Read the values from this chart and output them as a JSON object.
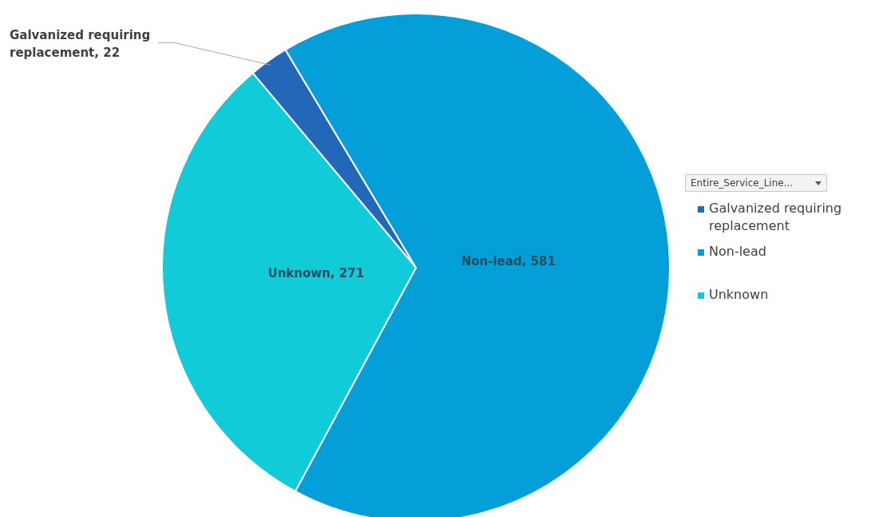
{
  "chart_data": {
    "type": "pie",
    "legend_title": "Entire_Service_Line...",
    "categories": [
      "Galvanized requiring replacement",
      "Non-lead",
      "Unknown"
    ],
    "values": [
      22,
      581,
      271
    ],
    "colors": [
      "#2368b8",
      "#049fd9",
      "#12cbd8"
    ],
    "value_labels": [
      "Galvanized requiring replacement, 22",
      "Non-lead, 581",
      "Unknown, 271"
    ],
    "legend": "right"
  }
}
